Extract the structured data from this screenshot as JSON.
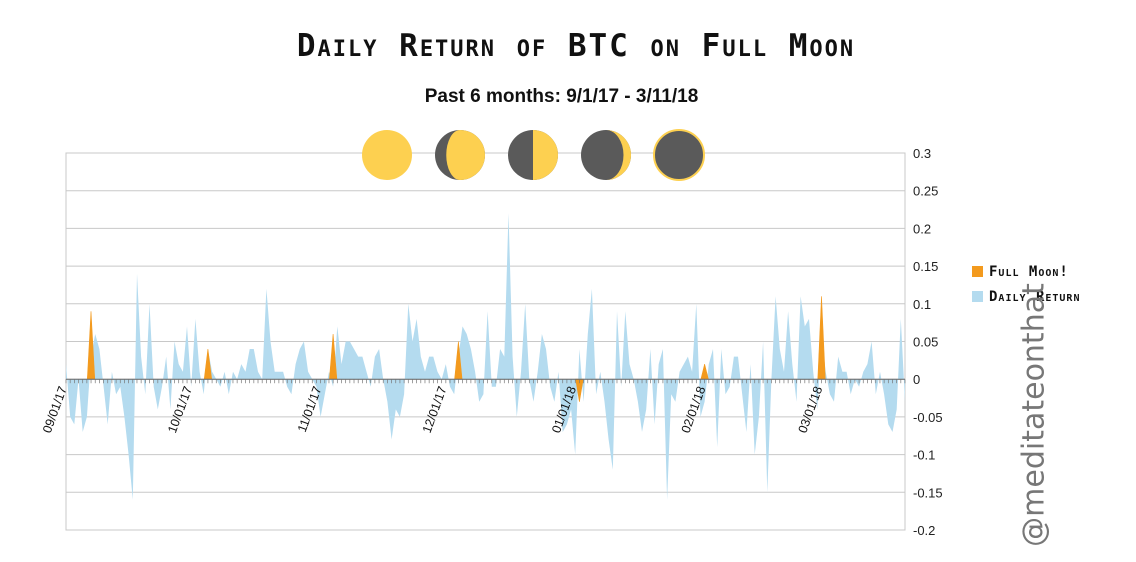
{
  "title": "Daily Return of BTC on Full Moon",
  "subtitle": "Past 6 months: 9/1/17 - 3/11/18",
  "watermark": "@meditateonthat",
  "moon_phases": [
    "full-moon-icon",
    "waning-gibbous-icon",
    "last-quarter-icon",
    "waning-crescent-icon",
    "new-moon-icon"
  ],
  "colors": {
    "full_moon": "#F39A1E",
    "daily_return": "#B4DBEF",
    "moon_light": "#FDD050",
    "moon_dark": "#5A5A5A",
    "grid": "#C8C8C8"
  },
  "chart_data": {
    "type": "area",
    "ylim": [
      -0.2,
      0.3
    ],
    "y_ticks": [
      "0.3",
      "0.25",
      "0.2",
      "0.15",
      "0.1",
      "0.05",
      "0",
      "-0.05",
      "-0.1",
      "-0.15",
      "-0.2"
    ],
    "x_ticks": [
      "09/01/17",
      "10/01/17",
      "11/01/17",
      "12/01/17",
      "01/01/18",
      "02/01/18",
      "03/01/18"
    ],
    "legend": [
      "Full Moon!",
      "Daily Return"
    ],
    "legend_position": "right",
    "grid": true,
    "series": [
      {
        "name": "Daily Return",
        "values": [
          0.02,
          -0.05,
          -0.06,
          0.0,
          -0.07,
          -0.05,
          0.03,
          0.06,
          0.04,
          -0.01,
          -0.06,
          0.01,
          -0.02,
          -0.01,
          -0.05,
          -0.1,
          -0.16,
          0.14,
          0.03,
          -0.02,
          0.1,
          -0.01,
          -0.04,
          -0.01,
          0.03,
          -0.04,
          0.05,
          0.02,
          0.01,
          0.07,
          -0.01,
          0.08,
          0.01,
          -0.02,
          0.04,
          0.01,
          0.0,
          -0.01,
          0.01,
          -0.02,
          0.01,
          0.0,
          0.02,
          0.01,
          0.04,
          0.04,
          0.01,
          0.0,
          0.12,
          0.05,
          0.01,
          0.01,
          0.01,
          -0.01,
          -0.02,
          0.02,
          0.04,
          0.05,
          0.01,
          0.0,
          -0.01,
          -0.05,
          -0.02,
          0.01,
          -0.01,
          0.07,
          0.02,
          0.05,
          0.05,
          0.04,
          0.03,
          0.03,
          0.01,
          -0.01,
          0.03,
          0.04,
          0.0,
          -0.03,
          -0.08,
          -0.04,
          -0.05,
          -0.02,
          0.1,
          0.05,
          0.08,
          0.03,
          0.01,
          0.03,
          0.03,
          0.01,
          0.0,
          0.02,
          -0.01,
          -0.02,
          0.03,
          0.07,
          0.06,
          0.04,
          0.01,
          -0.03,
          -0.02,
          0.09,
          -0.01,
          -0.01,
          0.04,
          0.03,
          0.22,
          0.03,
          -0.05,
          0.01,
          0.1,
          0.0,
          -0.03,
          0.01,
          0.06,
          0.04,
          -0.01,
          -0.03,
          0.01,
          -0.07,
          -0.06,
          -0.04,
          -0.1,
          0.04,
          -0.03,
          0.06,
          0.12,
          -0.02,
          0.01,
          -0.03,
          -0.08,
          -0.12,
          0.09,
          -0.01,
          0.09,
          0.02,
          0.0,
          -0.03,
          -0.07,
          -0.04,
          0.04,
          -0.06,
          0.02,
          0.04,
          -0.16,
          -0.02,
          -0.03,
          0.01,
          0.02,
          0.03,
          0.01,
          0.1,
          -0.05,
          -0.03,
          0.02,
          0.04,
          -0.09,
          0.04,
          -0.02,
          -0.01,
          0.03,
          0.03,
          -0.02,
          -0.07,
          0.02,
          -0.1,
          -0.05,
          0.05,
          -0.15,
          0.0,
          0.11,
          0.04,
          0.01,
          0.09,
          0.02,
          -0.03,
          0.11,
          0.07,
          0.08,
          0.01,
          -0.04,
          0.06,
          0.01,
          -0.02,
          -0.03,
          0.03,
          0.01,
          0.01,
          -0.02,
          0.0,
          -0.01,
          0.01,
          0.02,
          0.05,
          -0.02,
          0.01,
          -0.02,
          -0.06,
          -0.07,
          -0.04,
          0.08,
          -0.03
        ]
      },
      {
        "name": "Full Moon!",
        "points": [
          [
            6,
            0.09
          ],
          [
            34,
            0.04
          ],
          [
            64,
            0.06
          ],
          [
            94,
            0.05
          ],
          [
            123,
            -0.03
          ],
          [
            153,
            0.02
          ],
          [
            181,
            0.11
          ]
        ]
      }
    ]
  }
}
